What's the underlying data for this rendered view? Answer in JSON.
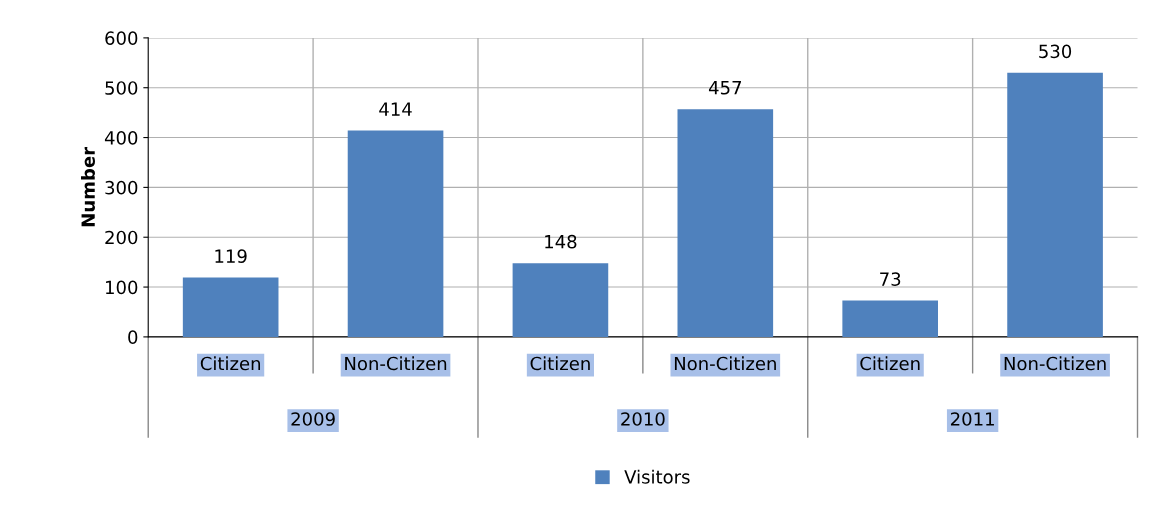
{
  "chart_data": {
    "type": "bar",
    "ylabel": "Number",
    "categories": [
      "Citizen",
      "Non-Citizen",
      "Citizen",
      "Non-Citizen",
      "Citizen",
      "Non-Citizen"
    ],
    "series": [
      {
        "name": "Visitors",
        "color": "#4f81bd",
        "values": [
          119,
          414,
          148,
          457,
          73,
          530
        ]
      }
    ],
    "annotations": [
      "2009",
      "2010",
      "2011"
    ],
    "ylim": [
      0,
      600
    ],
    "yticks": [
      0,
      100,
      200,
      300,
      400,
      500,
      600
    ],
    "grid": true,
    "legend": "bottom",
    "data_labels": true
  }
}
